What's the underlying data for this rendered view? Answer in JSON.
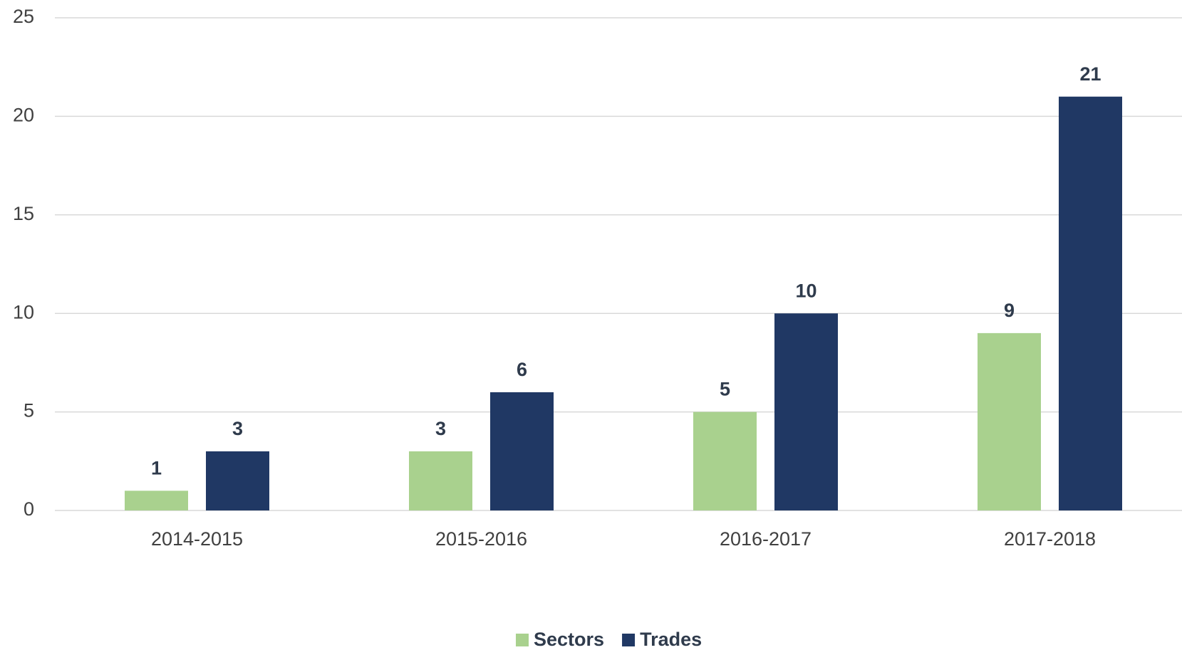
{
  "chart_data": {
    "type": "bar",
    "categories": [
      "2014-2015",
      "2015-2016",
      "2016-2017",
      "2017-2018"
    ],
    "series": [
      {
        "name": "Sectors",
        "color": "#a9d18e",
        "values": [
          1,
          3,
          5,
          9
        ]
      },
      {
        "name": "Trades",
        "color": "#203864",
        "values": [
          3,
          6,
          10,
          21
        ]
      }
    ],
    "ylim": [
      0,
      25
    ],
    "yticks": [
      0,
      5,
      10,
      15,
      20,
      25
    ],
    "grid": true,
    "legend": "bottom"
  }
}
